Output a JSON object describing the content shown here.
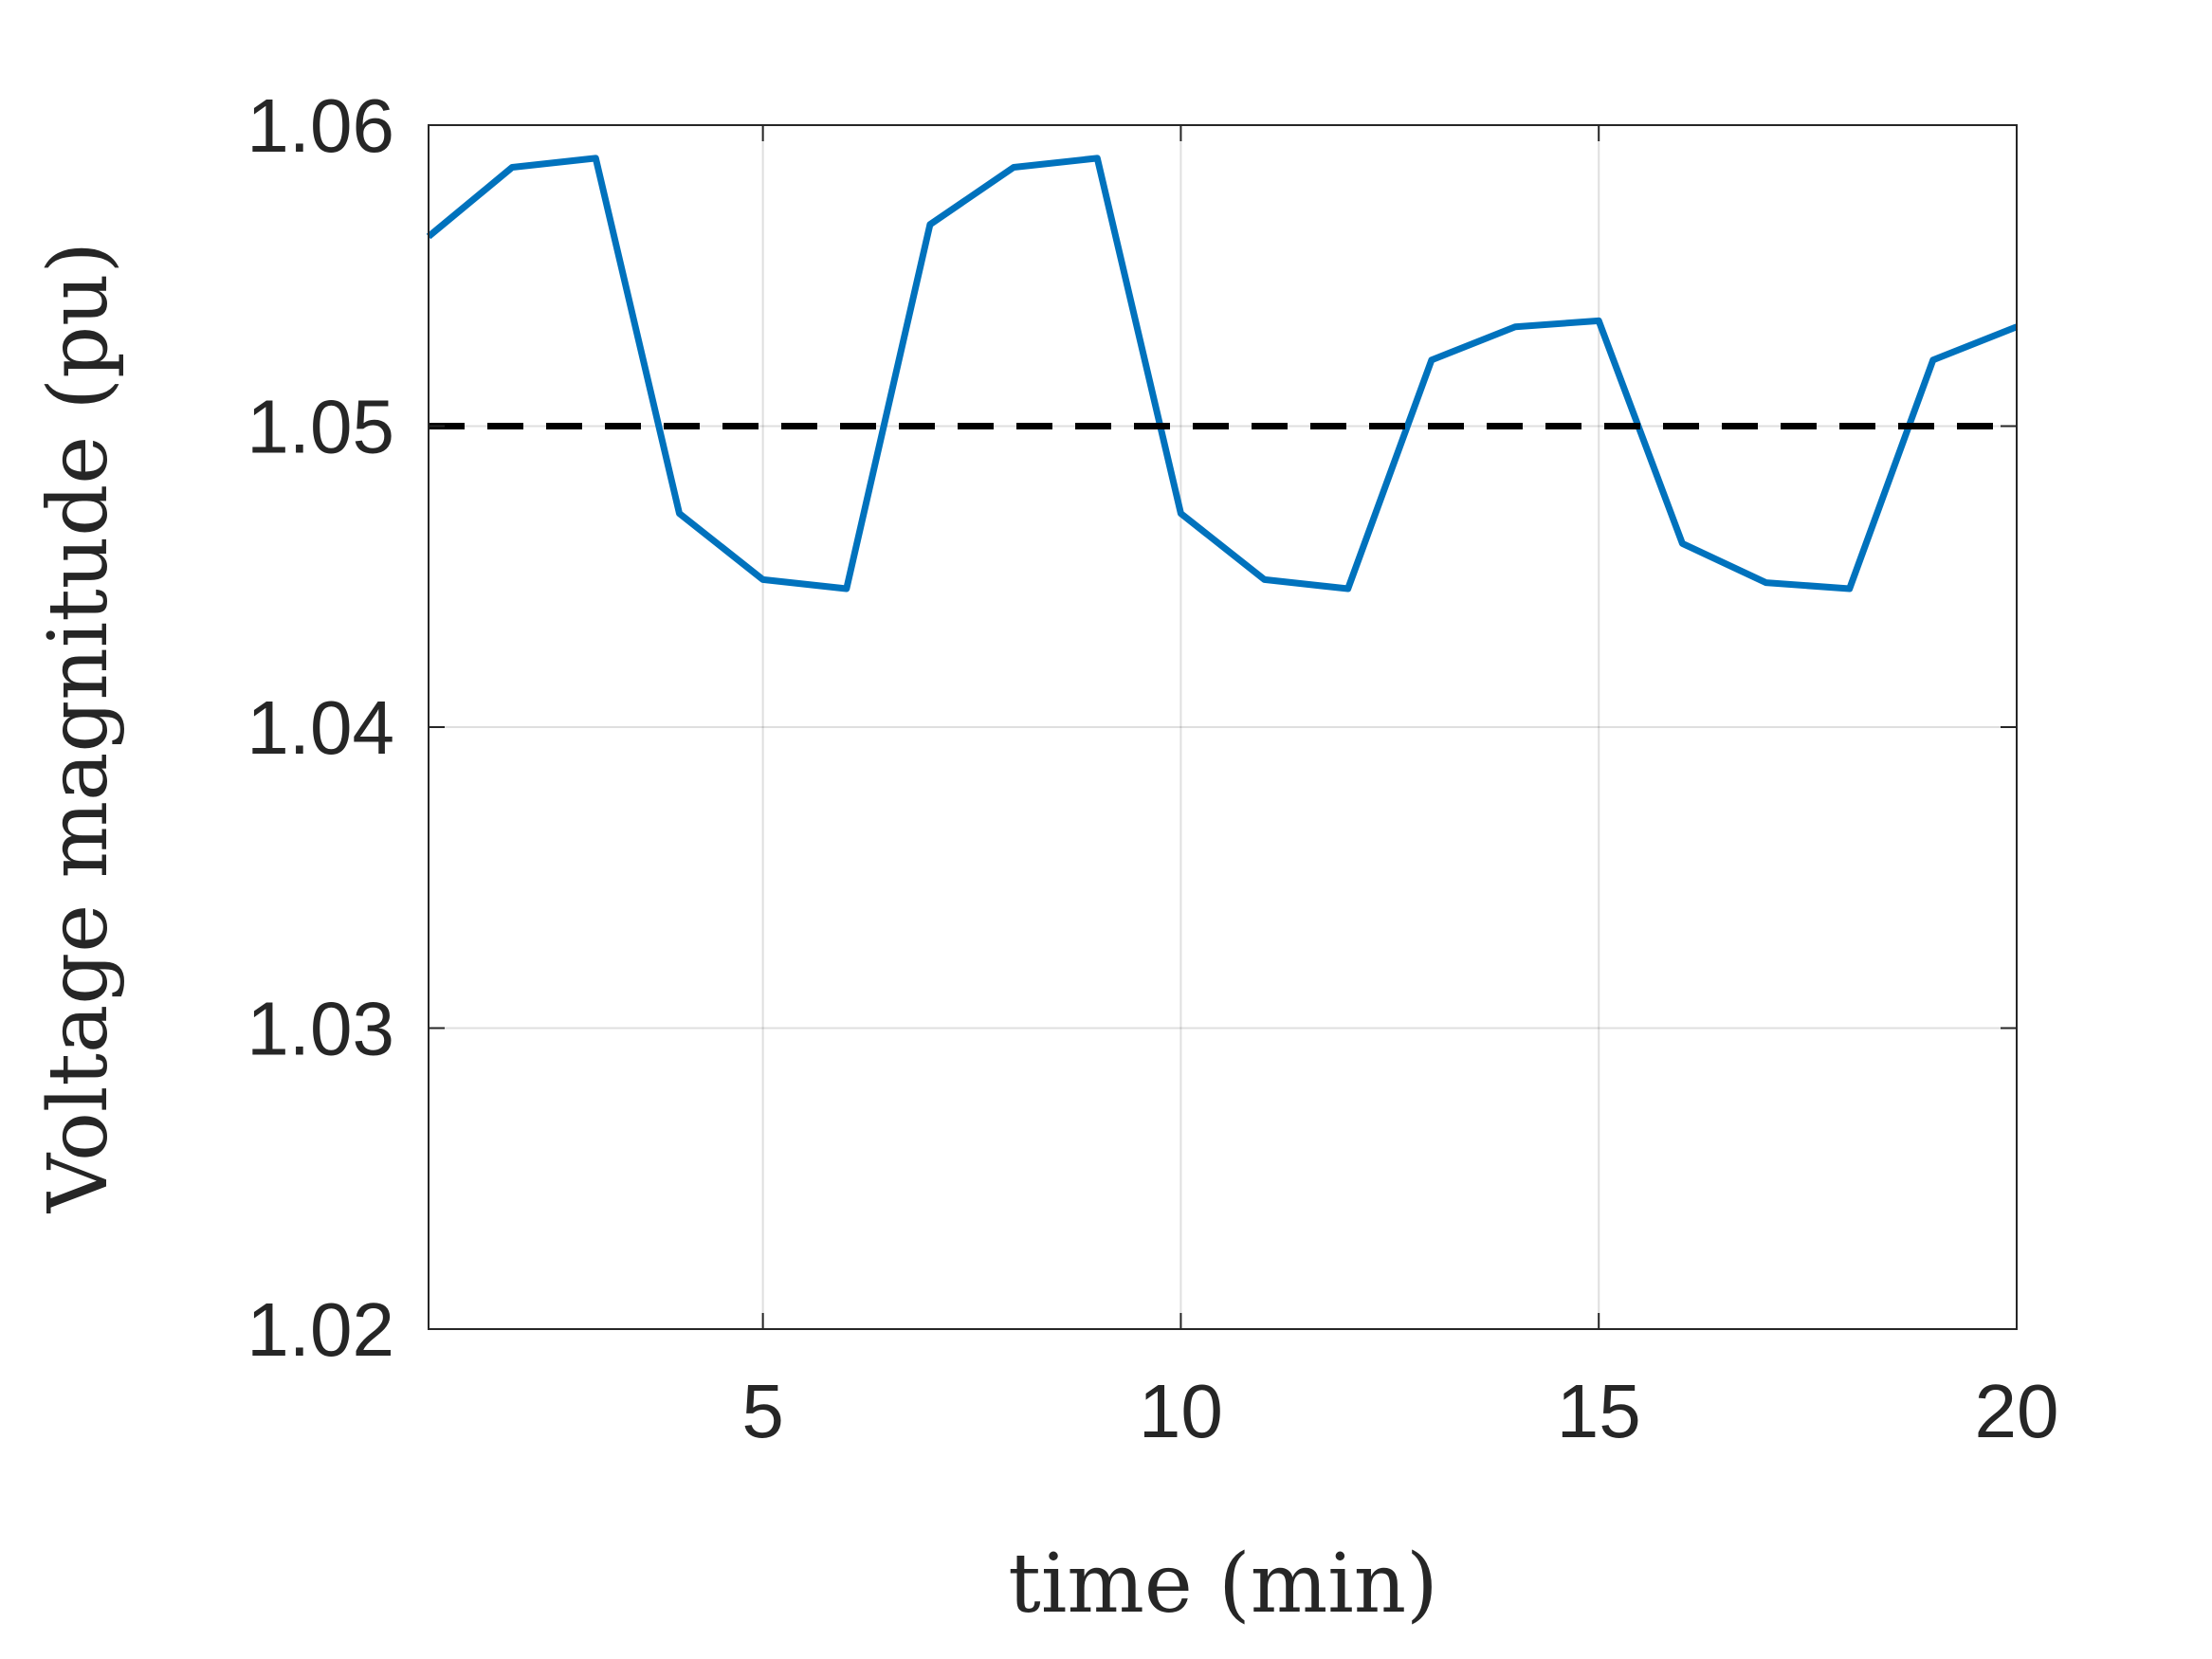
{
  "chart_data": {
    "type": "line",
    "title": "",
    "xlabel": "time (min)",
    "ylabel": "Voltage magnitude (pu)",
    "xlim": [
      1,
      20
    ],
    "ylim": [
      1.02,
      1.06
    ],
    "xticks": [
      5,
      10,
      15,
      20
    ],
    "xtick_labels": [
      "5",
      "10",
      "15",
      "20"
    ],
    "yticks": [
      1.02,
      1.03,
      1.04,
      1.05,
      1.06
    ],
    "ytick_labels": [
      "1.02",
      "1.03",
      "1.04",
      "1.05",
      "1.06"
    ],
    "grid": true,
    "legend": "none",
    "series": [
      {
        "color": "#0072BD",
        "style": "solid",
        "x": [
          1,
          2,
          3,
          4,
          5,
          6,
          7,
          8,
          9,
          10,
          11,
          12,
          13,
          14,
          15,
          16,
          17,
          18,
          19,
          20
        ],
        "values": [
          1.0563,
          1.0586,
          1.0589,
          1.0471,
          1.0449,
          1.0446,
          1.0567,
          1.0586,
          1.0589,
          1.0471,
          1.0449,
          1.0446,
          1.0522,
          1.0533,
          1.0535,
          1.0461,
          1.0448,
          1.0446,
          1.0522,
          1.0533
        ]
      },
      {
        "color": "#000000",
        "style": "dashed",
        "x": [
          1,
          20
        ],
        "values": [
          1.05,
          1.05
        ]
      }
    ]
  }
}
